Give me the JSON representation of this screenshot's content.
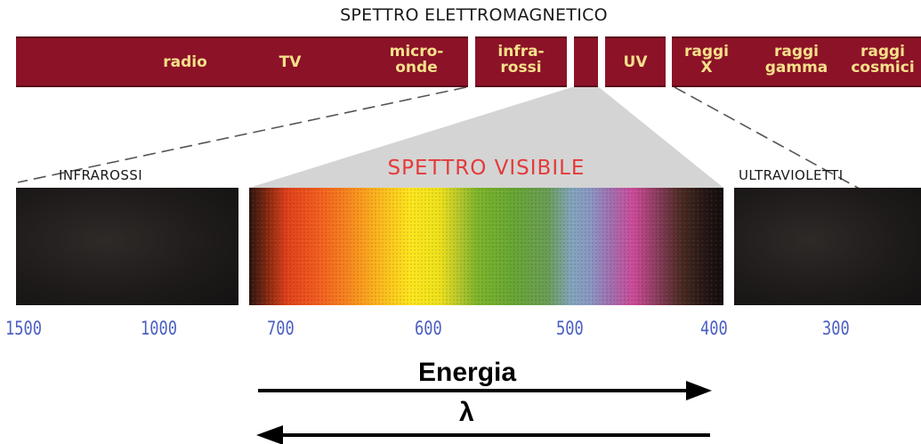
{
  "title": "SPETTRO ELETTROMAGNETICO",
  "bands": [
    {
      "key": "radio-tv-micro",
      "labels": [
        "radio",
        "TV",
        "micro-\nonde"
      ]
    },
    {
      "key": "infrared",
      "label": "infra-\nrossi"
    },
    {
      "key": "visible",
      "label": ""
    },
    {
      "key": "uv",
      "label": "UV"
    },
    {
      "key": "x-gamma-cosmic",
      "labels": [
        "raggi\nX",
        "raggi\ngamma",
        "raggi\ncosmici"
      ]
    }
  ],
  "panels": {
    "infrared_label": "INFRAROSSI",
    "visible_label": "SPETTRO VISIBILE",
    "ultraviolet_label": "ULTRAVIOLETTI"
  },
  "ticks": [
    "1500",
    "1000",
    "700",
    "600",
    "500",
    "400",
    "300"
  ],
  "arrows": {
    "energy_label": "Energia",
    "energy_direction": "right",
    "lambda_label": "λ",
    "lambda_direction": "left"
  },
  "colors": {
    "band": "#8c1228",
    "band_text": "#f4e08a",
    "tick_text": "#4b5fc0",
    "visible_title": "#e43a3a",
    "wedge": "#d4d4d4"
  }
}
